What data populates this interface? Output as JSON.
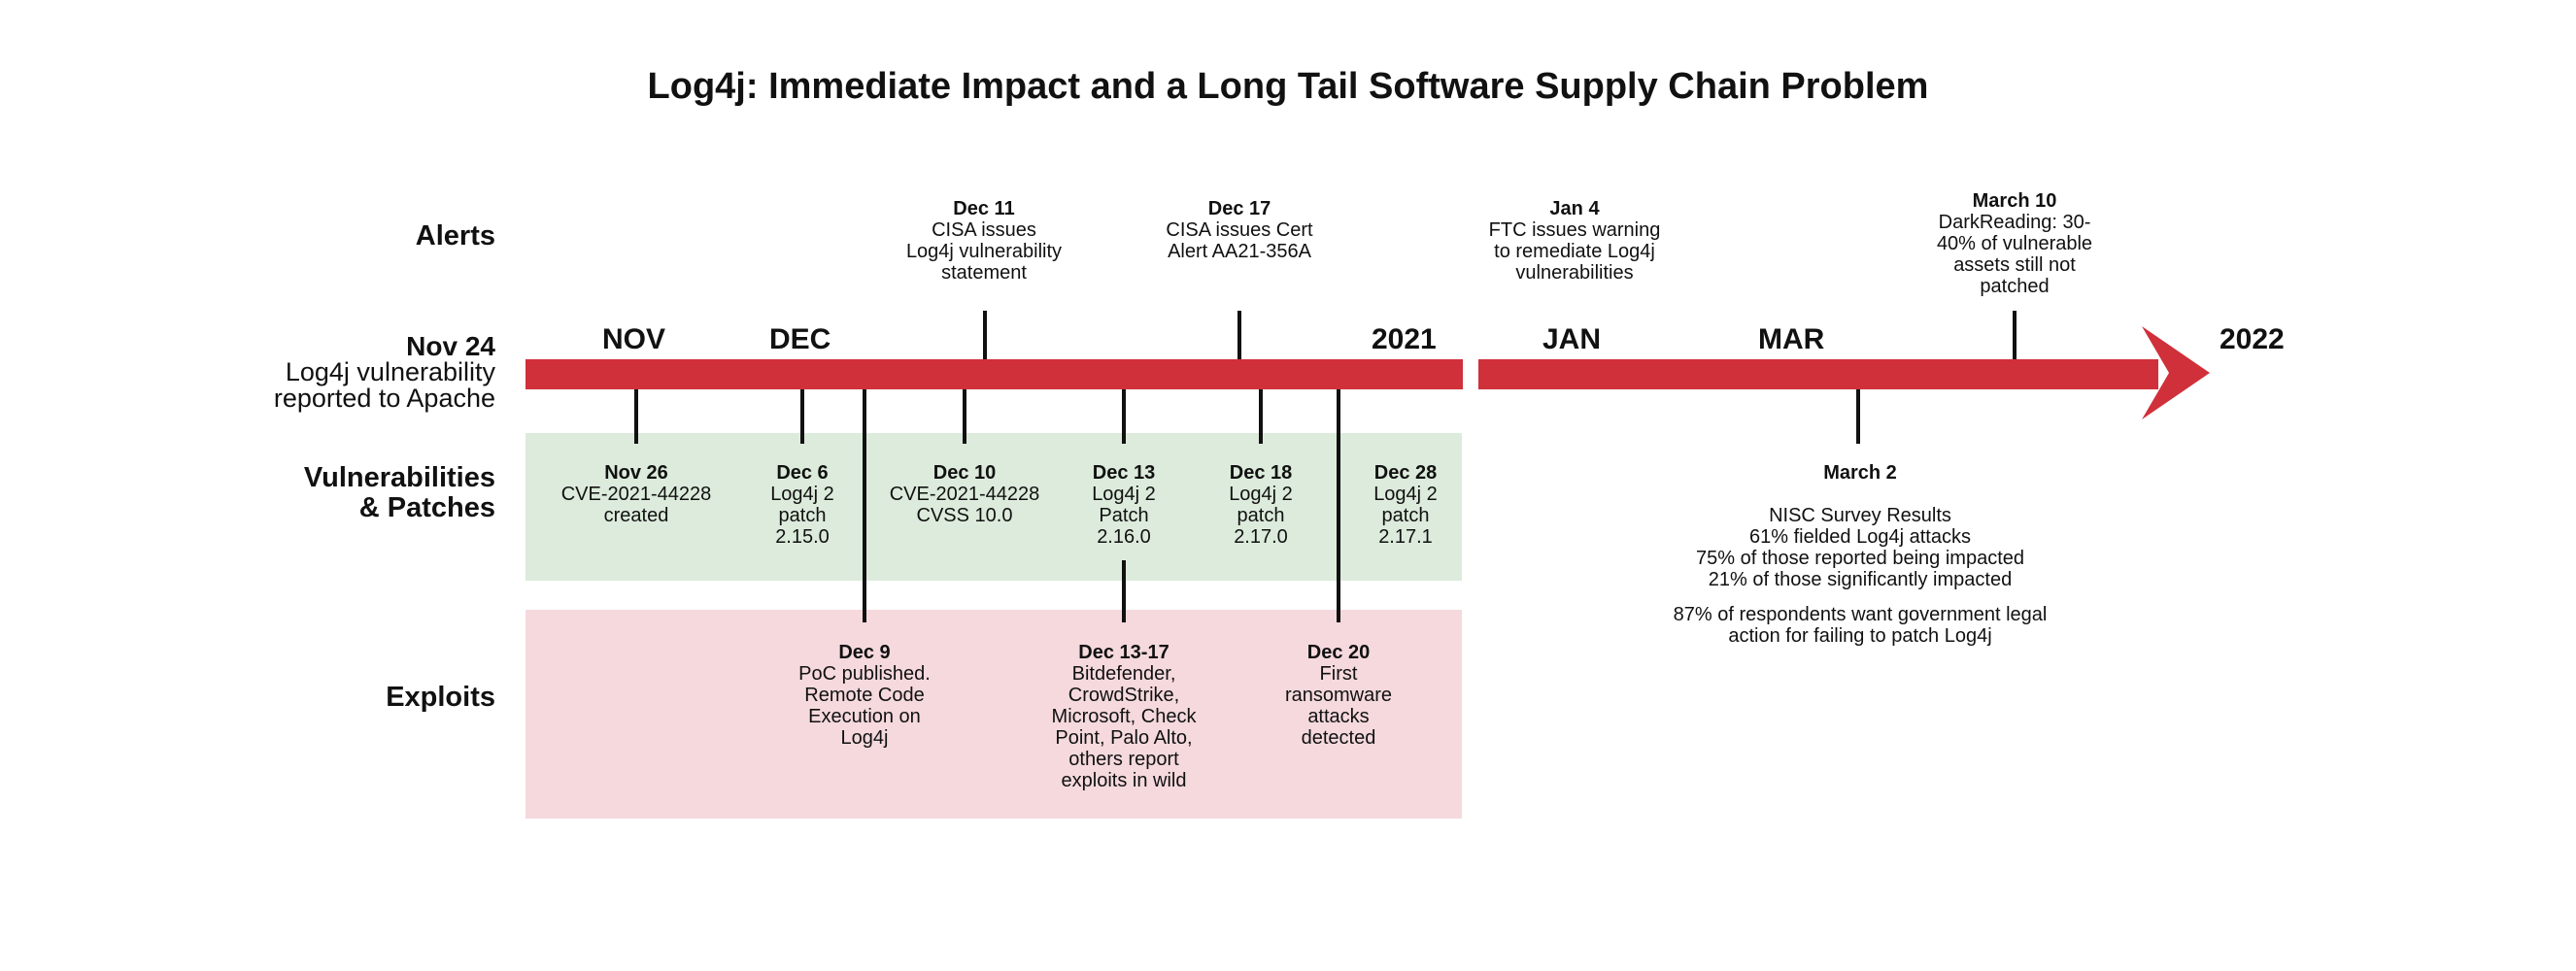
{
  "title": "Log4j: Immediate Impact and a Long Tail Software Supply Chain Problem",
  "row_labels": {
    "alerts": "Alerts",
    "vulnerabilities": "Vulnerabilities\n& Patches",
    "exploits": "Exploits"
  },
  "start": {
    "date": "Nov 24",
    "text": "Log4j vulnerability\nreported to Apache"
  },
  "months": {
    "nov": "NOV",
    "dec": "DEC",
    "y2021": "2021",
    "jan": "JAN",
    "mar": "MAR",
    "y2022": "2022"
  },
  "alerts": [
    {
      "date": "Dec 11",
      "text": "CISA issues\nLog4j vulnerability\nstatement"
    },
    {
      "date": "Dec 17",
      "text": "CISA issues Cert\nAlert AA21-356A"
    },
    {
      "date": "Jan 4",
      "text": "FTC issues warning\nto remediate Log4j\nvulnerabilities"
    },
    {
      "date": "March 10",
      "text": "DarkReading: 30-\n40% of vulnerable\nassets still not\npatched"
    }
  ],
  "patches": [
    {
      "date": "Nov 26",
      "text": "CVE-2021-44228\ncreated"
    },
    {
      "date": "Dec 6",
      "text": "Log4j 2\npatch\n2.15.0"
    },
    {
      "date": "Dec 10",
      "text": "CVE-2021-44228\nCVSS 10.0"
    },
    {
      "date": "Dec 13",
      "text": "Log4j 2\nPatch\n2.16.0"
    },
    {
      "date": "Dec 18",
      "text": "Log4j 2\npatch\n2.17.0"
    },
    {
      "date": "Dec 28",
      "text": "Log4j 2\npatch\n2.17.1"
    }
  ],
  "exploits": [
    {
      "date": "Dec 9",
      "text": "PoC published.\nRemote Code\nExecution on\nLog4j"
    },
    {
      "date": "Dec 13-17",
      "text": "Bitdefender,\nCrowdStrike,\nMicrosoft, Check\nPoint, Palo Alto,\nothers report\nexploits in wild"
    },
    {
      "date": "Dec 20",
      "text": "First\nransomware\nattacks\ndetected"
    }
  ],
  "nisc": {
    "date": "March 2",
    "heading": "NISC Survey Results",
    "line1": "61% fielded Log4j attacks",
    "line2": "75% of those reported being impacted",
    "line3": "21% of those significantly impacted",
    "line4": "87% of respondents want government legal\naction for failing to patch Log4j"
  },
  "colors": {
    "arrow": "#d0303a",
    "patch_band": "#dcebdb",
    "exploit_band": "#f5d9dd"
  }
}
